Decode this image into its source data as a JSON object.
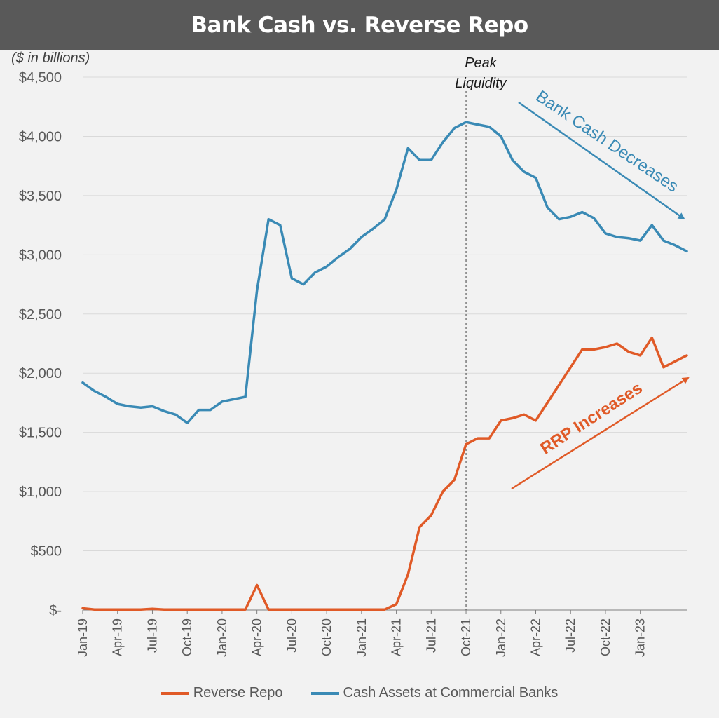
{
  "title": "Bank Cash vs. Reverse Repo",
  "units_note": "($ in billions)",
  "colors": {
    "rrp": "#e05a27",
    "cash": "#3a8ab5",
    "title_bg": "#595959",
    "grid": "#d9d9d9"
  },
  "annotations": {
    "peak_line1": "Peak",
    "peak_line2": "Liquidity",
    "cash_arrow": "Bank Cash Decreases",
    "rrp_arrow": "RRP Increases"
  },
  "legend": [
    {
      "label": "Reverse Repo",
      "color": "#e05a27"
    },
    {
      "label": "Cash Assets at Commercial Banks",
      "color": "#3a8ab5"
    }
  ],
  "chart_data": {
    "type": "line",
    "ylim": [
      0,
      4500
    ],
    "xlim": [
      "2019-01",
      "2023-05"
    ],
    "grid": true,
    "legend_position": "bottom",
    "y_ticks": [
      {
        "value": 0,
        "label": "$-"
      },
      {
        "value": 500,
        "label": "$500"
      },
      {
        "value": 1000,
        "label": "$1,000"
      },
      {
        "value": 1500,
        "label": "$1,500"
      },
      {
        "value": 2000,
        "label": "$2,000"
      },
      {
        "value": 2500,
        "label": "$2,500"
      },
      {
        "value": 3000,
        "label": "$3,000"
      },
      {
        "value": 3500,
        "label": "$3,500"
      },
      {
        "value": 4000,
        "label": "$4,000"
      },
      {
        "value": 4500,
        "label": "$4,500"
      }
    ],
    "x_ticks": [
      "Jan-19",
      "Apr-19",
      "Jul-19",
      "Oct-19",
      "Jan-20",
      "Apr-20",
      "Jul-20",
      "Oct-20",
      "Jan-21",
      "Apr-21",
      "Jul-21",
      "Oct-21",
      "Jan-22",
      "Apr-22",
      "Jul-22",
      "Oct-22",
      "Jan-23"
    ],
    "peak_marker_x": "2021-10",
    "series": [
      {
        "name": "Cash Assets at Commercial Banks",
        "x": [
          "2019-01",
          "2019-02",
          "2019-03",
          "2019-04",
          "2019-05",
          "2019-06",
          "2019-07",
          "2019-08",
          "2019-09",
          "2019-10",
          "2019-11",
          "2019-12",
          "2020-01",
          "2020-02",
          "2020-03",
          "2020-04",
          "2020-05",
          "2020-06",
          "2020-07",
          "2020-08",
          "2020-09",
          "2020-10",
          "2020-11",
          "2020-12",
          "2021-01",
          "2021-02",
          "2021-03",
          "2021-04",
          "2021-05",
          "2021-06",
          "2021-07",
          "2021-08",
          "2021-09",
          "2021-10",
          "2021-11",
          "2021-12",
          "2022-01",
          "2022-02",
          "2022-03",
          "2022-04",
          "2022-05",
          "2022-06",
          "2022-07",
          "2022-08",
          "2022-09",
          "2022-10",
          "2022-11",
          "2022-12",
          "2023-01",
          "2023-02",
          "2023-03",
          "2023-04",
          "2023-05"
        ],
        "values": [
          1920,
          1850,
          1800,
          1740,
          1720,
          1710,
          1720,
          1680,
          1650,
          1580,
          1690,
          1690,
          1760,
          1780,
          1800,
          2700,
          3300,
          3250,
          2800,
          2750,
          2850,
          2900,
          2980,
          3050,
          3150,
          3220,
          3300,
          3550,
          3900,
          3800,
          3800,
          3950,
          4070,
          4120,
          4100,
          4080,
          4000,
          3800,
          3700,
          3650,
          3400,
          3300,
          3320,
          3360,
          3310,
          3180,
          3150,
          3140,
          3120,
          3250,
          3120,
          3080,
          3030
        ]
      },
      {
        "name": "Reverse Repo",
        "x": [
          "2019-01",
          "2019-02",
          "2019-03",
          "2019-04",
          "2019-05",
          "2019-06",
          "2019-07",
          "2019-08",
          "2019-09",
          "2019-10",
          "2019-11",
          "2019-12",
          "2020-01",
          "2020-02",
          "2020-03",
          "2020-04",
          "2020-05",
          "2020-06",
          "2020-07",
          "2020-08",
          "2020-09",
          "2020-10",
          "2020-11",
          "2020-12",
          "2021-01",
          "2021-02",
          "2021-03",
          "2021-04",
          "2021-05",
          "2021-06",
          "2021-07",
          "2021-08",
          "2021-09",
          "2021-10",
          "2021-11",
          "2021-12",
          "2022-01",
          "2022-02",
          "2022-03",
          "2022-04",
          "2022-05",
          "2022-06",
          "2022-07",
          "2022-08",
          "2022-09",
          "2022-10",
          "2022-11",
          "2022-12",
          "2023-01",
          "2023-02",
          "2023-03",
          "2023-04",
          "2023-05"
        ],
        "values": [
          15,
          5,
          5,
          5,
          5,
          5,
          10,
          5,
          5,
          5,
          5,
          5,
          5,
          5,
          5,
          210,
          5,
          5,
          5,
          5,
          5,
          5,
          5,
          5,
          5,
          5,
          5,
          50,
          300,
          700,
          800,
          1000,
          1100,
          1400,
          1450,
          1450,
          1600,
          1620,
          1650,
          1600,
          1750,
          1900,
          2050,
          2200,
          2200,
          2220,
          2250,
          2180,
          2150,
          2300,
          2050,
          2100,
          2150
        ]
      }
    ]
  }
}
